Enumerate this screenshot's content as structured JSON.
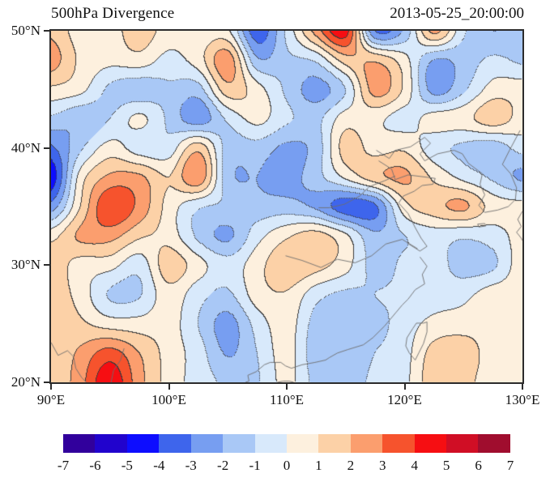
{
  "header": {
    "title": "500hPa Divergence",
    "timestamp": "2013-05-25_20:00:00"
  },
  "chart_data": {
    "type": "heatmap",
    "subtype": "filled_contour_map",
    "title": "500hPa Divergence",
    "timestamp_label": "2013-05-25_20:00:00",
    "lon_range": [
      90,
      130
    ],
    "lat_range": [
      20,
      50
    ],
    "lon_ticks": [
      {
        "value": 90,
        "label": "90°E"
      },
      {
        "value": 100,
        "label": "100°E"
      },
      {
        "value": 110,
        "label": "110°E"
      },
      {
        "value": 120,
        "label": "120°E"
      },
      {
        "value": 130,
        "label": "130°E"
      }
    ],
    "lat_ticks": [
      {
        "value": 20,
        "label": "20°N"
      },
      {
        "value": 30,
        "label": "30°N"
      },
      {
        "value": 40,
        "label": "40°N"
      },
      {
        "value": 50,
        "label": "50°N"
      }
    ],
    "contour_levels": [
      -7,
      -6,
      -5,
      -4,
      -3,
      -2,
      -1,
      0,
      1,
      2,
      3,
      4,
      5,
      6,
      7
    ],
    "colorbar": {
      "tick_labels": [
        "-7",
        "-6",
        "-5",
        "-4",
        "-3",
        "-2",
        "-1",
        "0",
        "1",
        "2",
        "3",
        "4",
        "5",
        "6",
        "7"
      ],
      "colors": [
        "#31009c",
        "#2103cd",
        "#0d0dff",
        "#3e65ec",
        "#779ef1",
        "#a9c8f6",
        "#d8e9fb",
        "#fdf0de",
        "#fcd1a7",
        "#fb9e6e",
        "#f6532d",
        "#f60e12",
        "#d00e25",
        "#a00d2e"
      ]
    },
    "contour_line_color": "#3c3c3c",
    "coastline_color": "#6e6e6e",
    "grid": {
      "lon_start": 90,
      "lon_step": 2.5,
      "lat_start": 50,
      "lat_step": -2.5,
      "values": [
        [
          1.8,
          0.5,
          0.5,
          1.6,
          0.5,
          0.3,
          0.2,
          -3.6,
          -0.8,
          2.4,
          4.5,
          -3.0,
          -1.8,
          2.3,
          -0.8,
          -2.0,
          -1.4
        ],
        [
          2.5,
          0.8,
          0.3,
          0.6,
          -0.3,
          0.5,
          2.6,
          -1.8,
          -1.2,
          -0.8,
          1.5,
          1.8,
          0.4,
          -2.0,
          -1.6,
          -0.8,
          -1.2
        ],
        [
          0.8,
          0.3,
          -1.2,
          -1.6,
          -1.2,
          -1.4,
          1.6,
          0.4,
          -1.2,
          -2.4,
          -1.0,
          2.4,
          0.8,
          -2.4,
          -1.2,
          0.4,
          0.5
        ],
        [
          -1.2,
          -1.8,
          -1.0,
          0.2,
          -1.2,
          -2.6,
          -0.8,
          0.3,
          -0.8,
          -1.3,
          0.5,
          0.3,
          -0.4,
          0.4,
          0.6,
          1.6,
          0.6
        ],
        [
          -3.2,
          -1.2,
          0.4,
          -0.5,
          -0.6,
          1.6,
          -1.4,
          -1.4,
          -2.2,
          -1.6,
          1.4,
          0.6,
          0.8,
          -0.6,
          -1.2,
          -1.6,
          -0.6
        ],
        [
          -4.7,
          0.4,
          2.2,
          2.2,
          1.0,
          2.8,
          -1.6,
          -2.0,
          -2.4,
          -1.4,
          0.2,
          1.6,
          2.2,
          0.8,
          -0.3,
          -1.2,
          -2.2
        ],
        [
          -2.6,
          1.0,
          3.9,
          2.7,
          0.6,
          -0.8,
          -1.2,
          -1.6,
          -1.6,
          -2.2,
          -3.6,
          -3.2,
          0.6,
          1.6,
          2.2,
          0.6,
          0.4
        ],
        [
          0.6,
          2.2,
          2.4,
          1.2,
          0.6,
          -1.2,
          -2.2,
          -0.4,
          0.8,
          1.4,
          0.2,
          -1.8,
          -1.0,
          -0.5,
          -0.8,
          -0.5,
          0.4
        ],
        [
          1.6,
          0.6,
          0.4,
          -0.6,
          1.6,
          0.4,
          -0.6,
          0.6,
          1.8,
          1.4,
          0.4,
          -1.4,
          -0.8,
          -0.6,
          -1.4,
          -1.2,
          0.6
        ],
        [
          1.6,
          0.6,
          -1.1,
          -1.1,
          0.6,
          -0.6,
          -1.2,
          0.5,
          0.9,
          -0.6,
          -1.2,
          -1.0,
          -0.8,
          -0.5,
          -0.3,
          0.5,
          0.6
        ],
        [
          1.8,
          1.2,
          0.5,
          0.4,
          0.5,
          -1.0,
          -2.4,
          -0.6,
          0.5,
          -1.4,
          -1.7,
          -1.4,
          -0.5,
          0.3,
          0.5,
          0.6,
          0.5
        ],
        [
          1.2,
          2.2,
          3.4,
          2.0,
          0.6,
          -0.5,
          -2.1,
          -1.0,
          0.4,
          -1.6,
          -1.7,
          -1.0,
          -0.4,
          1.4,
          1.6,
          0.5,
          0.4
        ],
        [
          1.1,
          2.6,
          4.8,
          2.4,
          0.6,
          -0.4,
          -1.2,
          -1.1,
          0.3,
          -1.3,
          -1.4,
          -0.8,
          -0.3,
          1.7,
          1.4,
          0.4,
          0.3
        ]
      ]
    },
    "coastlines": [
      [
        [
          117.6,
          39.8
        ],
        [
          118.7,
          39.1
        ],
        [
          119.2,
          39.8
        ],
        [
          120.5,
          40.1
        ],
        [
          121.7,
          40.9
        ],
        [
          122.2,
          40.4
        ],
        [
          121.3,
          39.5
        ],
        [
          121.7,
          38.9
        ],
        [
          122.8,
          39.5
        ],
        [
          124.2,
          39.8
        ],
        [
          124.9,
          39.5
        ]
      ],
      [
        [
          124.9,
          39.5
        ],
        [
          125.4,
          38.7
        ],
        [
          126.6,
          37.8
        ],
        [
          126.4,
          36.9
        ],
        [
          126.8,
          36.0
        ],
        [
          126.3,
          35.1
        ],
        [
          126.8,
          34.5
        ],
        [
          127.9,
          34.7
        ],
        [
          128.8,
          35.0
        ],
        [
          129.4,
          35.6
        ],
        [
          129.5,
          36.6
        ],
        [
          129.0,
          37.8
        ],
        [
          128.3,
          38.6
        ],
        [
          128.9,
          39.8
        ],
        [
          129.8,
          41.5
        ]
      ],
      [
        [
          117.8,
          38.9
        ],
        [
          118.9,
          38.2
        ],
        [
          119.2,
          37.3
        ],
        [
          120.3,
          37.7
        ],
        [
          121.9,
          37.5
        ],
        [
          122.6,
          37.4
        ],
        [
          122.4,
          36.9
        ],
        [
          121.5,
          36.8
        ],
        [
          120.8,
          36.3
        ],
        [
          119.9,
          35.9
        ],
        [
          119.5,
          35.3
        ],
        [
          120.3,
          34.4
        ],
        [
          120.9,
          33.2
        ],
        [
          121.4,
          32.3
        ],
        [
          121.9,
          31.6
        ],
        [
          121.3,
          31.2
        ],
        [
          120.2,
          31.9
        ]
      ],
      [
        [
          121.3,
          30.7
        ],
        [
          121.9,
          29.9
        ],
        [
          121.5,
          29.2
        ],
        [
          121.7,
          28.4
        ],
        [
          120.9,
          27.9
        ],
        [
          120.3,
          27.1
        ],
        [
          119.8,
          26.6
        ],
        [
          119.3,
          26.0
        ],
        [
          118.3,
          24.8
        ],
        [
          117.3,
          23.8
        ],
        [
          116.5,
          23.2
        ],
        [
          115.2,
          22.8
        ],
        [
          114.3,
          22.5
        ],
        [
          113.6,
          22.1
        ],
        [
          113.3,
          21.9
        ]
      ],
      [
        [
          113.3,
          21.9
        ],
        [
          112.4,
          21.7
        ],
        [
          111.3,
          21.5
        ],
        [
          110.4,
          21.2
        ],
        [
          109.9,
          21.4
        ],
        [
          109.5,
          21.7
        ],
        [
          108.6,
          21.7
        ],
        [
          108.1,
          21.5
        ],
        [
          107.4,
          20.9
        ],
        [
          106.7,
          20.6
        ],
        [
          106.8,
          20.1
        ],
        [
          106.5,
          20.0
        ]
      ],
      [
        [
          109.2,
          20.0
        ],
        [
          109.7,
          20.1
        ],
        [
          110.2,
          20.1
        ],
        [
          110.6,
          20.0
        ]
      ],
      [
        [
          121.9,
          25.15
        ],
        [
          121.6,
          25.05
        ],
        [
          121.0,
          25.05
        ],
        [
          120.7,
          24.6
        ],
        [
          120.2,
          23.8
        ],
        [
          120.1,
          23.1
        ],
        [
          120.4,
          22.5
        ],
        [
          120.9,
          21.9
        ],
        [
          121.2,
          22.5
        ],
        [
          121.6,
          23.3
        ],
        [
          121.9,
          24.3
        ],
        [
          121.9,
          25.15
        ]
      ],
      [
        [
          90.0,
          23.4
        ],
        [
          90.6,
          22.3
        ],
        [
          91.4,
          22.7
        ],
        [
          91.9,
          22.2
        ],
        [
          92.1,
          21.2
        ],
        [
          92.6,
          20.4
        ],
        [
          93.0,
          20.0
        ]
      ],
      [
        [
          126.2,
          33.5
        ],
        [
          126.8,
          33.55
        ],
        [
          126.9,
          33.35
        ],
        [
          126.3,
          33.25
        ],
        [
          126.2,
          33.5
        ]
      ],
      [
        [
          130.0,
          34.6
        ],
        [
          129.6,
          33.9
        ],
        [
          129.9,
          33.3
        ],
        [
          129.5,
          32.8
        ],
        [
          129.9,
          32.3
        ],
        [
          130.0,
          32.1
        ]
      ],
      [
        [
          121.1,
          31.4
        ],
        [
          119.8,
          32.2
        ],
        [
          118.4,
          31.8
        ],
        [
          117.2,
          30.8
        ],
        [
          115.8,
          30.2
        ],
        [
          114.3,
          30.5
        ],
        [
          112.9,
          29.8
        ],
        [
          111.3,
          30.4
        ],
        [
          109.9,
          30.8
        ]
      ],
      [
        [
          119.2,
          37.6
        ],
        [
          118.3,
          37.2
        ],
        [
          117.0,
          36.7
        ],
        [
          116.2,
          35.9
        ],
        [
          114.9,
          35.2
        ],
        [
          113.6,
          34.9
        ],
        [
          112.7,
          34.9
        ]
      ],
      [
        [
          95.1,
          20.0
        ],
        [
          95.3,
          21.0
        ],
        [
          95.9,
          21.9
        ],
        [
          96.2,
          22.9
        ]
      ]
    ]
  }
}
